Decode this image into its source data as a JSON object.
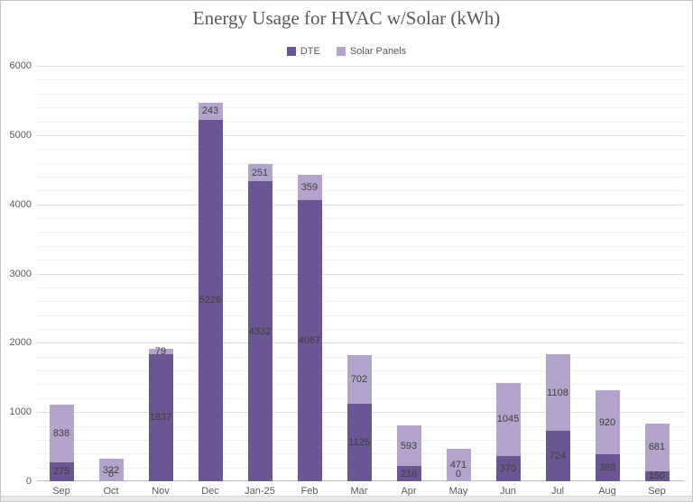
{
  "window": {
    "background": "#ffffff",
    "border_color": "#c6c6c6"
  },
  "chart_data": {
    "type": "bar",
    "stacked": true,
    "title": "Energy Usage for HVAC w/Solar (kWh)",
    "categories": [
      "Sep",
      "Oct",
      "Nov",
      "Dec",
      "Jan-25",
      "Feb",
      "Mar",
      "Apr",
      "May",
      "Jun",
      "Jul",
      "Aug",
      "Sep"
    ],
    "series": [
      {
        "name": "DTE",
        "color": "#6a5692",
        "values": [
          275,
          0,
          1837,
          5226,
          4332,
          4067,
          1125,
          216,
          0,
          370,
          724,
          389,
          150
        ]
      },
      {
        "name": "Solar Panels",
        "color": "#b3a4cb",
        "values": [
          838,
          322,
          79,
          243,
          251,
          359,
          702,
          593,
          471,
          1045,
          1108,
          920,
          681
        ]
      }
    ],
    "ylim": [
      0,
      6000
    ],
    "y_ticks": [
      0,
      1000,
      2000,
      3000,
      4000,
      5000,
      6000
    ],
    "y_minor_step": 200,
    "grid": true,
    "legend_position": "top",
    "data_labels": true,
    "xlabel": "",
    "ylabel": ""
  },
  "colors": {
    "title_text": "#595959",
    "axis_text": "#595959",
    "data_label_text": "#3f3f3f",
    "gridline_minor": "#f2f2f2",
    "gridline_major": "#dedede",
    "axis_line": "#bfbfbf"
  }
}
